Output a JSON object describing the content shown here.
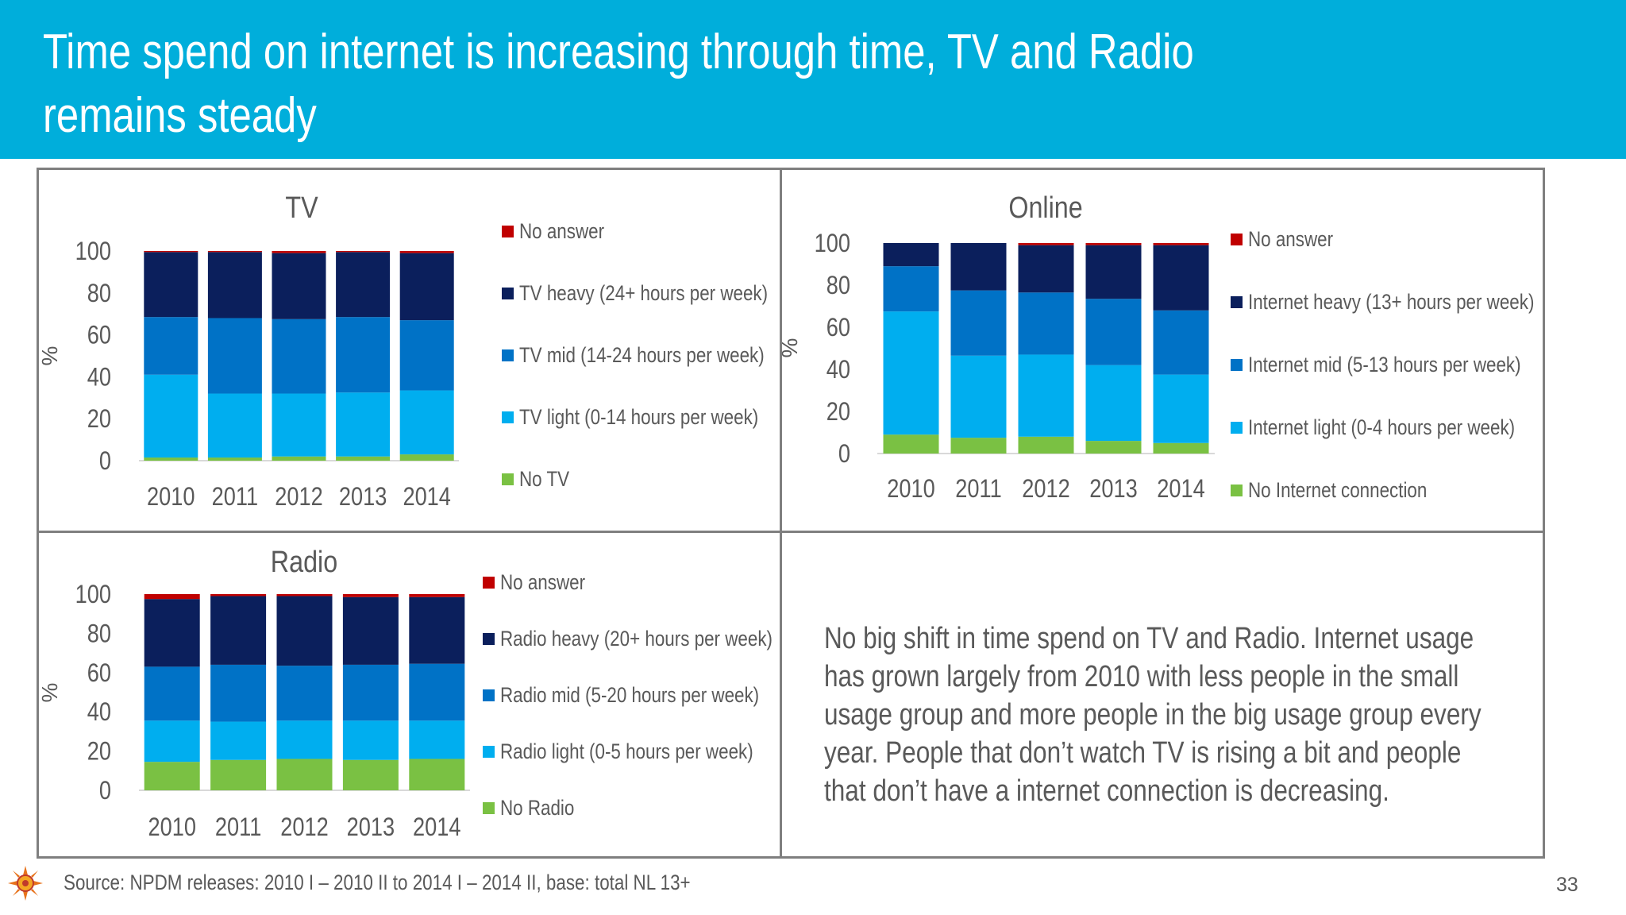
{
  "slide": {
    "title_line1": "Time spend on internet is increasing through time, TV and Radio",
    "title_line2": "remains steady",
    "summary_lines": [
      "No big shift in time spend on TV and Radio. Internet usage",
      "has grown largely from 2010 with less people in the small",
      "usage group and more people in the big usage group every",
      "year. People that don’t watch TV is rising a bit and people",
      "that don’t have a internet connection is decreasing."
    ],
    "source": "Source: NPDM releases: 2010 I – 2010 II to 2014 I – 2014 II, base: total NL 13+",
    "page_number": "33",
    "colors": {
      "header": "#00aedb",
      "frame": "#7f7f7f",
      "text": "#595959"
    }
  },
  "chart_data": [
    {
      "type": "bar",
      "stacked": true,
      "title": "TV",
      "ylabel": "%",
      "ylim": [
        0,
        100
      ],
      "yticks": [
        0,
        20,
        40,
        60,
        80,
        100
      ],
      "legend": "right",
      "grid": false,
      "categories": [
        "2010",
        "2011",
        "2012",
        "2013",
        "2014"
      ],
      "series": [
        {
          "name": "No TV",
          "color": "#7ac143",
          "values": [
            1.5,
            1.5,
            2,
            2,
            3
          ]
        },
        {
          "name": "TV light (0-14 hours per week)",
          "color": "#00aeef",
          "values": [
            39.5,
            30.5,
            30,
            30.5,
            30.5
          ]
        },
        {
          "name": "TV mid (14-24 hours per week)",
          "color": "#0072c6",
          "values": [
            27.5,
            36,
            35.5,
            36,
            33.5
          ]
        },
        {
          "name": "TV heavy (24+ hours per week)",
          "color": "#0b1f5c",
          "values": [
            31,
            31.5,
            31.5,
            31,
            32
          ]
        },
        {
          "name": "No answer",
          "color": "#c00000",
          "values": [
            0.5,
            0.5,
            1,
            0.5,
            1
          ]
        }
      ]
    },
    {
      "type": "bar",
      "stacked": true,
      "title": "Online",
      "ylabel": "%",
      "ylim": [
        0,
        100
      ],
      "yticks": [
        0,
        20,
        40,
        60,
        80,
        100
      ],
      "legend": "right",
      "grid": false,
      "categories": [
        "2010",
        "2011",
        "2012",
        "2013",
        "2014"
      ],
      "series": [
        {
          "name": "No Internet connection",
          "color": "#7ac143",
          "values": [
            9,
            7.5,
            8,
            6,
            5
          ]
        },
        {
          "name": "Internet light (0-4 hours per week)",
          "color": "#00aeef",
          "values": [
            58.5,
            39,
            39,
            36,
            32.5
          ]
        },
        {
          "name": "Internet mid (5-13 hours per week)",
          "color": "#0072c6",
          "values": [
            21.5,
            31,
            29.5,
            31.5,
            30.5
          ]
        },
        {
          "name": "Internet heavy (13+ hours per week)",
          "color": "#0b1f5c",
          "values": [
            11,
            22.5,
            22.5,
            25.5,
            31
          ]
        },
        {
          "name": "No answer",
          "color": "#c00000",
          "values": [
            0,
            0,
            1,
            1,
            1
          ]
        }
      ]
    },
    {
      "type": "bar",
      "stacked": true,
      "title": "Radio",
      "ylabel": "%",
      "ylim": [
        0,
        100
      ],
      "yticks": [
        0,
        20,
        40,
        60,
        80,
        100
      ],
      "legend": "right",
      "grid": false,
      "categories": [
        "2010",
        "2011",
        "2012",
        "2013",
        "2014"
      ],
      "series": [
        {
          "name": "No Radio",
          "color": "#7ac143",
          "values": [
            14.5,
            15.5,
            16,
            15.5,
            16
          ]
        },
        {
          "name": "Radio light (0-5 hours per week)",
          "color": "#00aeef",
          "values": [
            21,
            19.5,
            19.5,
            20,
            19.5
          ]
        },
        {
          "name": "Radio mid (5-20 hours per week)",
          "color": "#0072c6",
          "values": [
            27.5,
            29,
            28,
            28.5,
            29
          ]
        },
        {
          "name": "Radio heavy (20+ hours per week)",
          "color": "#0b1f5c",
          "values": [
            34.5,
            35,
            35.5,
            34.5,
            34
          ]
        },
        {
          "name": "No answer",
          "color": "#c00000",
          "values": [
            2.5,
            1,
            1,
            1.5,
            1.5
          ]
        }
      ]
    }
  ]
}
